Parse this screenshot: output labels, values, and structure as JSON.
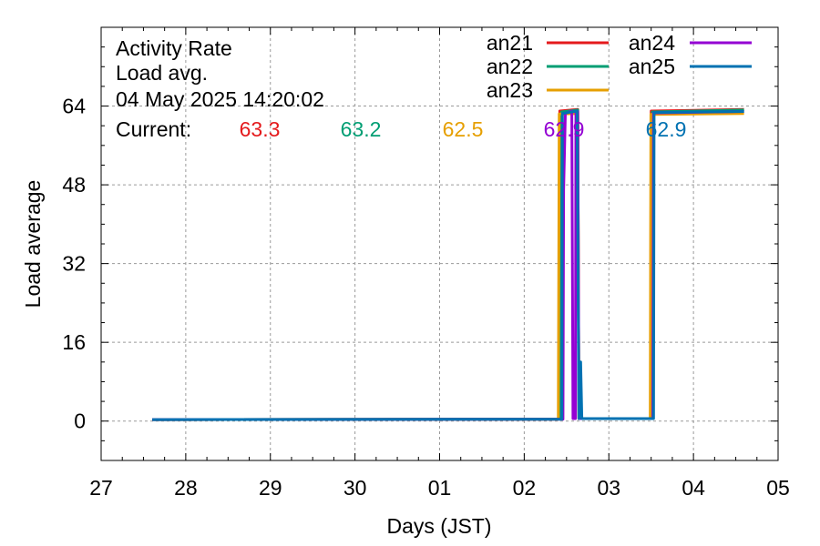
{
  "chart_data": {
    "type": "line",
    "title_lines": [
      "Activity Rate",
      "Load avg.",
      "04 May 2025 14:20:02"
    ],
    "current_label": "Current:",
    "xlabel": "Days (JST)",
    "ylabel": "Load average",
    "xlim": [
      "2025-04-27",
      "2025-05-05"
    ],
    "ylim": [
      -8,
      80
    ],
    "x_ticks": [
      "27",
      "28",
      "29",
      "30",
      "01",
      "02",
      "03",
      "04",
      "05"
    ],
    "y_ticks": [
      0,
      16,
      32,
      48,
      64
    ],
    "grid": true,
    "legend_position": "top-right",
    "series": [
      {
        "name": "an21",
        "color": "#e41a1c",
        "current": "63.3",
        "points": [
          [
            "2025-04-27 14:30",
            0.3
          ],
          [
            "2025-05-02 09:50",
            0.4
          ],
          [
            "2025-05-02 10:05",
            63.0
          ],
          [
            "2025-05-02 15:10",
            63.3
          ],
          [
            "2025-05-02 15:30",
            0.5
          ],
          [
            "2025-05-03 11:50",
            0.5
          ],
          [
            "2025-05-03 12:00",
            63.0
          ],
          [
            "2025-05-04 14:20",
            63.3
          ]
        ]
      },
      {
        "name": "an22",
        "color": "#009e73",
        "current": "63.2",
        "points": [
          [
            "2025-04-27 14:30",
            0.3
          ],
          [
            "2025-05-02 10:20",
            0.4
          ],
          [
            "2025-05-02 10:35",
            62.8
          ],
          [
            "2025-05-02 15:10",
            63.2
          ],
          [
            "2025-05-02 15:30",
            0.5
          ],
          [
            "2025-05-03 12:05",
            0.5
          ],
          [
            "2025-05-03 12:20",
            62.8
          ],
          [
            "2025-05-04 14:20",
            63.2
          ]
        ]
      },
      {
        "name": "an23",
        "color": "#e69f00",
        "current": "62.5",
        "points": [
          [
            "2025-04-27 14:30",
            0.3
          ],
          [
            "2025-05-02 09:40",
            0.4
          ],
          [
            "2025-05-02 09:55",
            62.4
          ],
          [
            "2025-05-02 15:10",
            62.5
          ],
          [
            "2025-05-02 15:30",
            0.5
          ],
          [
            "2025-05-03 11:45",
            0.5
          ],
          [
            "2025-05-03 11:55",
            62.3
          ],
          [
            "2025-05-04 14:20",
            62.5
          ]
        ]
      },
      {
        "name": "an24",
        "color": "#9400d3",
        "current": "62.9",
        "points": [
          [
            "2025-04-27 14:30",
            0.3
          ],
          [
            "2025-05-02 11:00",
            0.4
          ],
          [
            "2025-05-02 11:10",
            47.0
          ],
          [
            "2025-05-02 11:40",
            62.5
          ],
          [
            "2025-05-02 13:30",
            63.0
          ],
          [
            "2025-05-02 13:50",
            0.5
          ],
          [
            "2025-05-02 14:30",
            0.5
          ],
          [
            "2025-05-02 14:40",
            63.0
          ],
          [
            "2025-05-02 15:10",
            62.9
          ],
          [
            "2025-05-02 15:30",
            0.5
          ],
          [
            "2025-05-03 12:30",
            0.5
          ],
          [
            "2025-05-03 12:40",
            62.6
          ],
          [
            "2025-05-04 14:20",
            62.9
          ]
        ]
      },
      {
        "name": "an25",
        "color": "#0072b2",
        "current": "62.9",
        "points": [
          [
            "2025-04-27 14:30",
            0.3
          ],
          [
            "2025-05-02 10:40",
            0.4
          ],
          [
            "2025-05-02 10:50",
            62.5
          ],
          [
            "2025-05-02 15:00",
            63.0
          ],
          [
            "2025-05-02 15:10",
            40.0
          ],
          [
            "2025-05-02 15:30",
            0.5
          ],
          [
            "2025-05-02 16:00",
            12.0
          ],
          [
            "2025-05-02 16:20",
            0.5
          ],
          [
            "2025-05-03 12:40",
            0.5
          ],
          [
            "2025-05-03 12:50",
            62.7
          ],
          [
            "2025-05-04 14:20",
            62.9
          ]
        ]
      }
    ]
  }
}
